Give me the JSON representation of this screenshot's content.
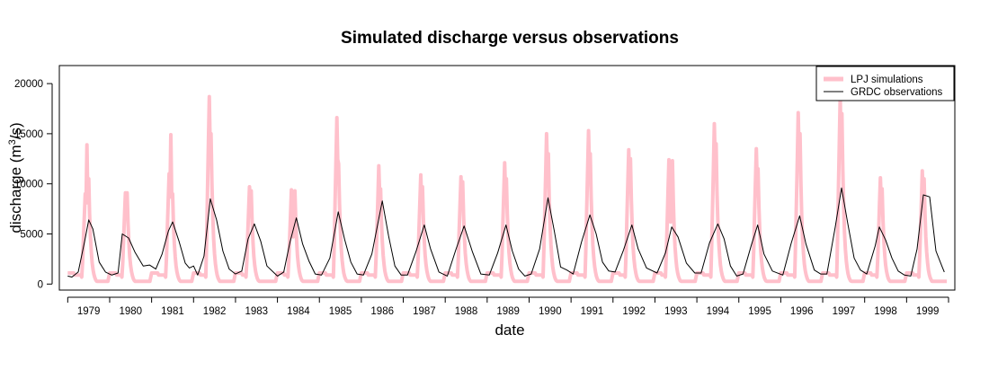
{
  "chart_data": {
    "type": "line",
    "title": "Simulated discharge versus observations",
    "xlabel": "date",
    "ylabel_main": "discharge (m",
    "ylabel_sup": "3",
    "ylabel_tail": "/s)",
    "xlim": [
      1978.8,
      2000.15
    ],
    "ylim": [
      -600,
      21800
    ],
    "x_ticks": [
      "1979",
      "1980",
      "1981",
      "1982",
      "1983",
      "1984",
      "1985",
      "1986",
      "1987",
      "1988",
      "1989",
      "1990",
      "1991",
      "1992",
      "1993",
      "1994",
      "1995",
      "1996",
      "1997",
      "1998",
      "1999"
    ],
    "y_ticks": [
      "0",
      "5000",
      "10000",
      "15000",
      "20000"
    ],
    "y_tick_values": [
      0,
      5000,
      10000,
      15000,
      20000
    ],
    "grid": false,
    "legend_position": "top-right",
    "colors": {
      "simulations": "#ffc0cb",
      "observations": "#000000"
    },
    "series": [
      {
        "name": "LPJ simulations",
        "style": "thick-band",
        "annual_peaks": [
          {
            "year": 1979,
            "peaks": [
              [
                5,
                9000
              ],
              [
                5.5,
                13900
              ],
              [
                6,
                10500
              ]
            ]
          },
          {
            "year": 1980,
            "peaks": [
              [
                4.5,
                9100
              ],
              [
                5,
                9100
              ]
            ]
          },
          {
            "year": 1981,
            "peaks": [
              [
                5,
                11000
              ],
              [
                5.5,
                14900
              ],
              [
                6,
                9000
              ]
            ]
          },
          {
            "year": 1982,
            "peaks": [
              [
                4.5,
                18700
              ],
              [
                5,
                15000
              ]
            ]
          },
          {
            "year": 1983,
            "peaks": [
              [
                4,
                9700
              ],
              [
                4.5,
                9300
              ]
            ]
          },
          {
            "year": 1984,
            "peaks": [
              [
                4,
                9400
              ],
              [
                5,
                9300
              ]
            ]
          },
          {
            "year": 1985,
            "peaks": [
              [
                5,
                16600
              ],
              [
                5.5,
                12000
              ]
            ]
          },
          {
            "year": 1986,
            "peaks": [
              [
                5,
                11800
              ],
              [
                5.5,
                9500
              ]
            ]
          },
          {
            "year": 1987,
            "peaks": [
              [
                5,
                10900
              ],
              [
                5.5,
                9700
              ]
            ]
          },
          {
            "year": 1988,
            "peaks": [
              [
                4.5,
                10700
              ],
              [
                5,
                10200
              ]
            ]
          },
          {
            "year": 1989,
            "peaks": [
              [
                5,
                12100
              ],
              [
                5.5,
                10500
              ]
            ]
          },
          {
            "year": 1990,
            "peaks": [
              [
                5,
                15000
              ],
              [
                5.5,
                13000
              ]
            ]
          },
          {
            "year": 1991,
            "peaks": [
              [
                5,
                15300
              ],
              [
                5.5,
                13000
              ]
            ]
          },
          {
            "year": 1992,
            "peaks": [
              [
                4.5,
                13400
              ],
              [
                5,
                12500
              ]
            ]
          },
          {
            "year": 1993,
            "peaks": [
              [
                4,
                12400
              ],
              [
                5,
                12300
              ]
            ]
          },
          {
            "year": 1994,
            "peaks": [
              [
                5,
                16000
              ],
              [
                5.5,
                14000
              ]
            ]
          },
          {
            "year": 1995,
            "peaks": [
              [
                5,
                13500
              ],
              [
                5.5,
                11500
              ]
            ]
          },
          {
            "year": 1996,
            "peaks": [
              [
                5,
                17100
              ],
              [
                5.5,
                15000
              ]
            ]
          },
          {
            "year": 1997,
            "peaks": [
              [
                5,
                18700
              ],
              [
                5.5,
                17000
              ]
            ]
          },
          {
            "year": 1998,
            "peaks": [
              [
                4.5,
                10600
              ],
              [
                5,
                9500
              ]
            ]
          },
          {
            "year": 1999,
            "peaks": [
              [
                4.5,
                11300
              ],
              [
                5,
                10500
              ]
            ]
          }
        ],
        "baseflow": 700
      },
      {
        "name": "GRDC observations",
        "style": "thin-line",
        "points": [
          [
            1979.0,
            800
          ],
          [
            1979.1,
            700
          ],
          [
            1979.25,
            1200
          ],
          [
            1979.4,
            4200
          ],
          [
            1979.5,
            6400
          ],
          [
            1979.6,
            5500
          ],
          [
            1979.75,
            2200
          ],
          [
            1979.9,
            1200
          ],
          [
            1980.05,
            900
          ],
          [
            1980.2,
            1100
          ],
          [
            1980.3,
            5000
          ],
          [
            1980.45,
            4600
          ],
          [
            1980.6,
            3200
          ],
          [
            1980.8,
            1800
          ],
          [
            1980.95,
            1900
          ],
          [
            1981.1,
            1500
          ],
          [
            1981.25,
            3000
          ],
          [
            1981.4,
            5300
          ],
          [
            1981.5,
            6200
          ],
          [
            1981.65,
            4300
          ],
          [
            1981.8,
            2100
          ],
          [
            1981.9,
            1600
          ],
          [
            1982.0,
            1800
          ],
          [
            1982.1,
            900
          ],
          [
            1982.25,
            2800
          ],
          [
            1982.4,
            8500
          ],
          [
            1982.55,
            6400
          ],
          [
            1982.7,
            3300
          ],
          [
            1982.85,
            1500
          ],
          [
            1983.0,
            1000
          ],
          [
            1983.15,
            1300
          ],
          [
            1983.3,
            4500
          ],
          [
            1983.45,
            6000
          ],
          [
            1983.6,
            4300
          ],
          [
            1983.75,
            1800
          ],
          [
            1983.9,
            1200
          ],
          [
            1984.0,
            800
          ],
          [
            1984.15,
            1200
          ],
          [
            1984.3,
            4200
          ],
          [
            1984.45,
            6600
          ],
          [
            1984.6,
            4000
          ],
          [
            1984.75,
            2300
          ],
          [
            1984.9,
            1000
          ],
          [
            1985.05,
            900
          ],
          [
            1985.25,
            2600
          ],
          [
            1985.45,
            7200
          ],
          [
            1985.6,
            4500
          ],
          [
            1985.75,
            2200
          ],
          [
            1985.9,
            1000
          ],
          [
            1986.05,
            900
          ],
          [
            1986.25,
            3000
          ],
          [
            1986.5,
            8300
          ],
          [
            1986.65,
            4800
          ],
          [
            1986.8,
            1800
          ],
          [
            1986.95,
            900
          ],
          [
            1987.1,
            900
          ],
          [
            1987.3,
            3200
          ],
          [
            1987.5,
            5900
          ],
          [
            1987.65,
            3500
          ],
          [
            1987.85,
            1200
          ],
          [
            1988.05,
            800
          ],
          [
            1988.25,
            3400
          ],
          [
            1988.45,
            5800
          ],
          [
            1988.65,
            3200
          ],
          [
            1988.85,
            1000
          ],
          [
            1989.05,
            900
          ],
          [
            1989.25,
            3100
          ],
          [
            1989.45,
            5900
          ],
          [
            1989.6,
            3300
          ],
          [
            1989.75,
            1500
          ],
          [
            1989.9,
            800
          ],
          [
            1990.05,
            1000
          ],
          [
            1990.25,
            3500
          ],
          [
            1990.45,
            8600
          ],
          [
            1990.6,
            5300
          ],
          [
            1990.75,
            1700
          ],
          [
            1990.9,
            1400
          ],
          [
            1991.05,
            1000
          ],
          [
            1991.25,
            4200
          ],
          [
            1991.45,
            6900
          ],
          [
            1991.6,
            5000
          ],
          [
            1991.75,
            2200
          ],
          [
            1991.9,
            1300
          ],
          [
            1992.05,
            1200
          ],
          [
            1992.25,
            3400
          ],
          [
            1992.45,
            5900
          ],
          [
            1992.6,
            3500
          ],
          [
            1992.8,
            1600
          ],
          [
            1993.05,
            1100
          ],
          [
            1993.25,
            3100
          ],
          [
            1993.4,
            5700
          ],
          [
            1993.55,
            4700
          ],
          [
            1993.75,
            2100
          ],
          [
            1993.95,
            1100
          ],
          [
            1994.1,
            1100
          ],
          [
            1994.3,
            4100
          ],
          [
            1994.5,
            6000
          ],
          [
            1994.65,
            4500
          ],
          [
            1994.8,
            1800
          ],
          [
            1994.95,
            800
          ],
          [
            1995.1,
            1000
          ],
          [
            1995.3,
            3900
          ],
          [
            1995.45,
            5900
          ],
          [
            1995.6,
            3000
          ],
          [
            1995.8,
            1300
          ],
          [
            1996.05,
            900
          ],
          [
            1996.25,
            4100
          ],
          [
            1996.45,
            6800
          ],
          [
            1996.6,
            4000
          ],
          [
            1996.8,
            1400
          ],
          [
            1996.95,
            1000
          ],
          [
            1997.1,
            1000
          ],
          [
            1997.3,
            5700
          ],
          [
            1997.45,
            9600
          ],
          [
            1997.6,
            6000
          ],
          [
            1997.75,
            2600
          ],
          [
            1997.9,
            1400
          ],
          [
            1998.05,
            1000
          ],
          [
            1998.25,
            3800
          ],
          [
            1998.35,
            5700
          ],
          [
            1998.5,
            4400
          ],
          [
            1998.65,
            2600
          ],
          [
            1998.8,
            1300
          ],
          [
            1998.95,
            900
          ],
          [
            1999.1,
            800
          ],
          [
            1999.25,
            3500
          ],
          [
            1999.4,
            8900
          ],
          [
            1999.55,
            8700
          ],
          [
            1999.7,
            3300
          ],
          [
            1999.85,
            1700
          ],
          [
            1999.9,
            1200
          ]
        ]
      }
    ]
  }
}
